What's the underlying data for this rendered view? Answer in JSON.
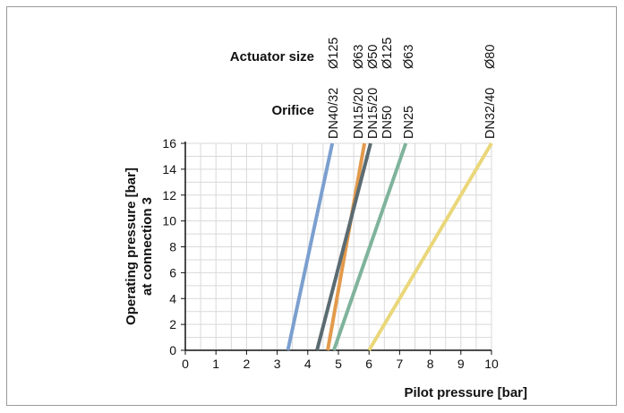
{
  "chart_data": {
    "type": "line",
    "header_labels": {
      "actuator": "Actuator size",
      "orifice": "Orifice"
    },
    "xlabel": "Pilot pressure [bar]",
    "ylabel": [
      "Operating pressure [bar]",
      "at connection 3"
    ],
    "xlim": [
      0,
      10
    ],
    "ylim": [
      0,
      16
    ],
    "x_ticks": [
      "0",
      "1",
      "2",
      "3",
      "4",
      "5",
      "6",
      "7",
      "8",
      "9",
      "10"
    ],
    "y_ticks": [
      "0",
      "2",
      "4",
      "6",
      "8",
      "10",
      "12",
      "14",
      "16"
    ],
    "grid": true,
    "series": [
      {
        "orifice": "DN40/32",
        "actuator": "Ø125",
        "color": "#7b9fcf",
        "x": [
          3.35,
          4.8
        ],
        "y": [
          0,
          16
        ]
      },
      {
        "orifice": "DN15/20",
        "actuator": "Ø63",
        "color": "#e39a4c",
        "x": [
          4.65,
          5.85
        ],
        "y": [
          0,
          16
        ]
      },
      {
        "orifice": "DN15/20",
        "actuator": "Ø50",
        "color": "#5b6b72",
        "x": [
          4.3,
          6.05
        ],
        "y": [
          0,
          16
        ]
      },
      {
        "orifice": "DN50",
        "actuator": "Ø125",
        "color": "#5b6b72",
        "x": null,
        "y": null
      },
      {
        "orifice": "DN25",
        "actuator": "Ø63",
        "color": "#7fb39b",
        "x": [
          4.85,
          7.2
        ],
        "y": [
          0,
          16
        ]
      },
      {
        "orifice": "DN32/40",
        "actuator": "Ø80",
        "color": "#ead77a",
        "x": [
          6.0,
          10.0
        ],
        "y": [
          0,
          16
        ]
      }
    ]
  }
}
